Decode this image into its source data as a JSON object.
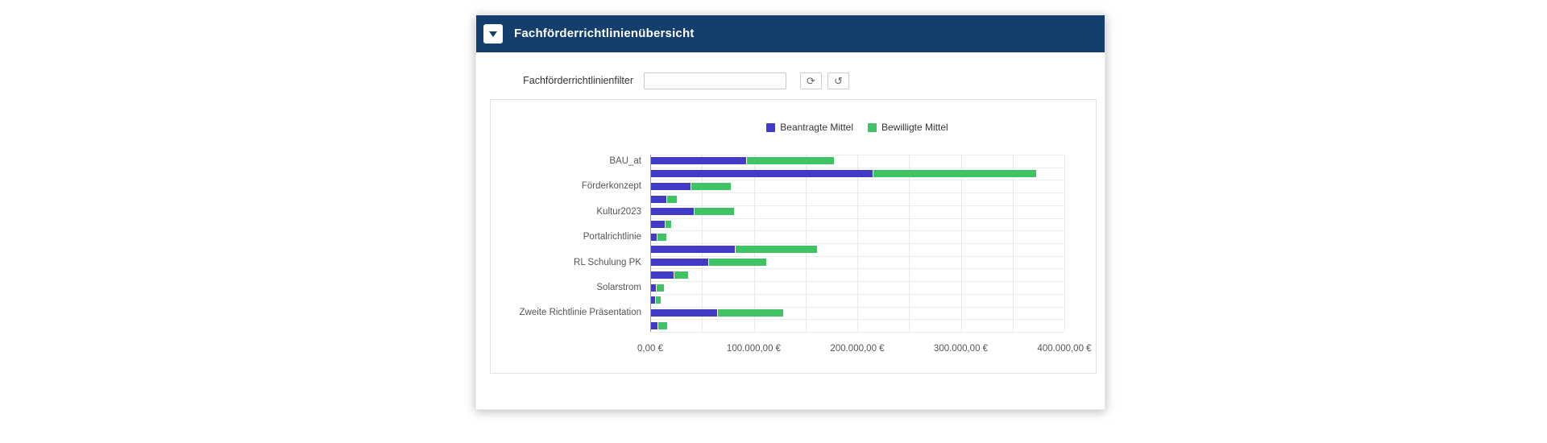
{
  "window": {
    "title": "Fachförderrichtlinienübersicht"
  },
  "filter": {
    "label": "Fachförderrichtlinienfilter",
    "value": "",
    "placeholder": "",
    "refresh_icon": "⟳",
    "reset_icon": "↺"
  },
  "colors": {
    "header_bg": "#143E6B",
    "beantragte_mittel": "#413BC6",
    "bewilligte_mittel": "#3FC365"
  },
  "chart_data": {
    "type": "bar",
    "orientation": "horizontal",
    "stacked": true,
    "title": "",
    "xlabel": "",
    "ylabel": "",
    "grid": true,
    "legend_position": "top",
    "legend": [
      {
        "name": "Beantragte Mittel",
        "color": "#413BC6"
      },
      {
        "name": "Bewilligte Mittel",
        "color": "#3FC365"
      }
    ],
    "x_axis": {
      "min": 0,
      "max": 400000,
      "label_step": 100000,
      "grid_step": 50000,
      "unit": "EUR",
      "tick_labels": [
        "0,00 €",
        "100.000,00 €",
        "200.000,00 €",
        "300.000,00 €",
        "400.000,00 €"
      ],
      "last_tick_label_clipped": true
    },
    "categories": [
      "BAU_at",
      "Förderkonzept",
      "Kultur2023",
      "Portalrichtlinie",
      "RL Schulung PK",
      "Solarstrom",
      "Zweite Richtlinie Präsentation"
    ],
    "rows": [
      {
        "category": "BAU_at",
        "bars": [
          {
            "beantragte_mittel": 92000,
            "bewilligte_mittel": 85000
          },
          {
            "beantragte_mittel": 214000,
            "bewilligte_mittel": 158000
          }
        ]
      },
      {
        "category": "Förderkonzept",
        "bars": [
          {
            "beantragte_mittel": 38000,
            "bewilligte_mittel": 39000
          },
          {
            "beantragte_mittel": 15000,
            "bewilligte_mittel": 10000
          }
        ]
      },
      {
        "category": "Kultur2023",
        "bars": [
          {
            "beantragte_mittel": 41000,
            "bewilligte_mittel": 39000
          },
          {
            "beantragte_mittel": 13000,
            "bewilligte_mittel": 6500
          }
        ]
      },
      {
        "category": "Portalrichtlinie",
        "bars": [
          {
            "beantragte_mittel": 5500,
            "bewilligte_mittel": 9000
          },
          {
            "beantragte_mittel": 81000,
            "bewilligte_mittel": 79000
          }
        ]
      },
      {
        "category": "RL Schulung PK",
        "bars": [
          {
            "beantragte_mittel": 55000,
            "bewilligte_mittel": 56000
          },
          {
            "beantragte_mittel": 22000,
            "bewilligte_mittel": 14000
          }
        ]
      },
      {
        "category": "Solarstrom",
        "bars": [
          {
            "beantragte_mittel": 4500,
            "bewilligte_mittel": 8000
          },
          {
            "beantragte_mittel": 4000,
            "bewilligte_mittel": 5500
          }
        ]
      },
      {
        "category": "Zweite Richtlinie Präsentation",
        "bars": [
          {
            "beantragte_mittel": 64000,
            "bewilligte_mittel": 64000
          },
          {
            "beantragte_mittel": 6000,
            "bewilligte_mittel": 9500
          }
        ]
      }
    ]
  }
}
